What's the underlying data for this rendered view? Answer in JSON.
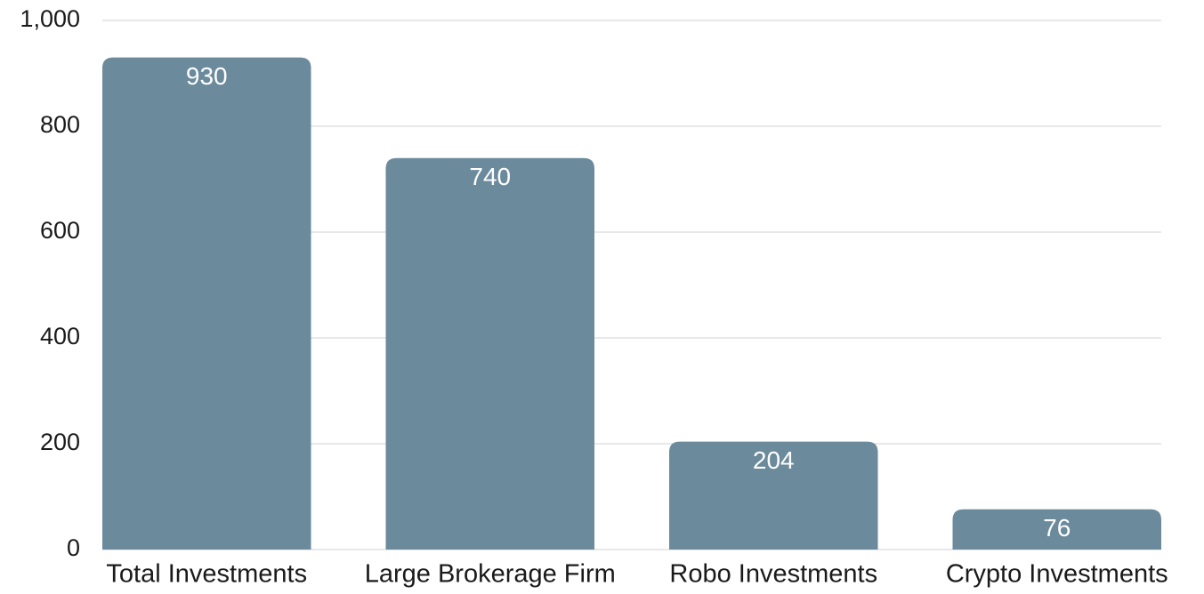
{
  "chart_data": {
    "type": "bar",
    "categories": [
      "Total Investments",
      "Large Brokerage Firm",
      "Robo Investments",
      "Crypto Investments"
    ],
    "values": [
      930,
      740,
      204,
      76
    ],
    "color": "#6b8a9c",
    "ylim": [
      0,
      1000
    ],
    "yticks": [
      0,
      200,
      400,
      600,
      800,
      {
        "value": 1000,
        "label": "1,000"
      }
    ],
    "grid": true
  }
}
